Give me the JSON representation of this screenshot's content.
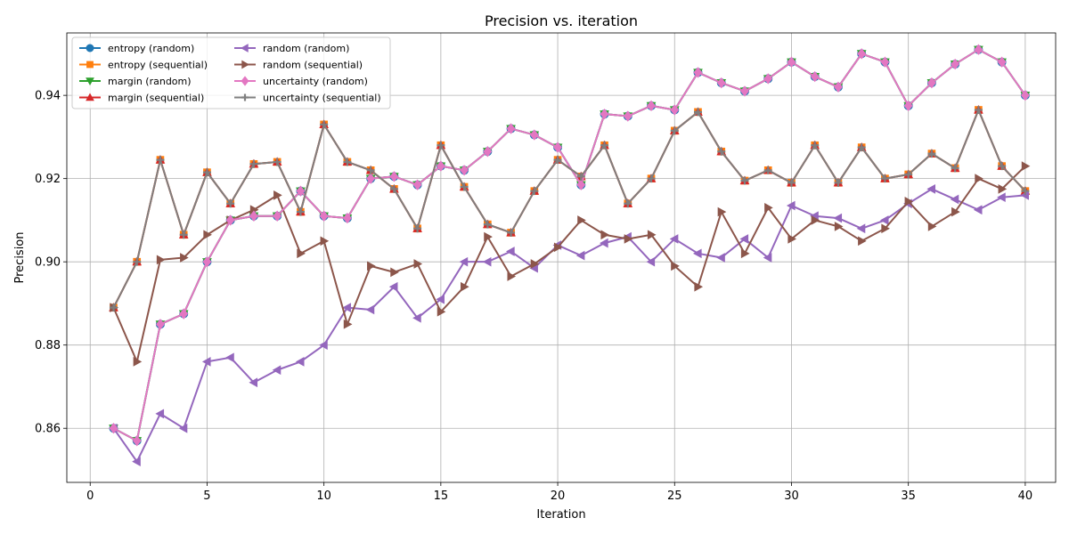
{
  "chart_data": {
    "type": "line",
    "title": "Precision vs. iteration",
    "xlabel": "Iteration",
    "ylabel": "Precision",
    "xlim": [
      -1,
      41.3
    ],
    "ylim": [
      0.847,
      0.955
    ],
    "xticks": [
      0,
      5,
      10,
      15,
      20,
      25,
      30,
      35,
      40
    ],
    "yticks": [
      0.86,
      0.88,
      0.9,
      0.92,
      0.94
    ],
    "grid": true,
    "legend_position": "upper-left",
    "x": [
      1,
      2,
      3,
      4,
      5,
      6,
      7,
      8,
      9,
      10,
      11,
      12,
      13,
      14,
      15,
      16,
      17,
      18,
      19,
      20,
      21,
      22,
      23,
      24,
      25,
      26,
      27,
      28,
      29,
      30,
      31,
      32,
      33,
      34,
      35,
      36,
      37,
      38,
      39,
      40
    ],
    "series": [
      {
        "name": "entropy (random)",
        "color": "#1f77b4",
        "marker": "circle",
        "values": [
          0.86,
          0.857,
          0.885,
          0.8875,
          0.9,
          0.91,
          0.911,
          0.911,
          0.917,
          0.911,
          0.9105,
          0.92,
          0.9205,
          0.9185,
          0.923,
          0.922,
          0.9265,
          0.932,
          0.9305,
          0.9275,
          0.9185,
          0.9355,
          0.935,
          0.9375,
          0.9365,
          0.9455,
          0.943,
          0.941,
          0.944,
          0.948,
          0.9445,
          0.942,
          0.95,
          0.948,
          0.9375,
          0.943,
          0.9475,
          0.951,
          0.948,
          0.94
        ]
      },
      {
        "name": "entropy (sequential)",
        "color": "#ff7f0e",
        "marker": "square",
        "values": [
          0.889,
          0.9,
          0.9245,
          0.9065,
          0.9215,
          0.914,
          0.9235,
          0.924,
          0.912,
          0.933,
          0.924,
          0.922,
          0.9175,
          0.908,
          0.928,
          0.918,
          0.909,
          0.907,
          0.917,
          0.9245,
          0.9205,
          0.928,
          0.914,
          0.92,
          0.9315,
          0.936,
          0.9265,
          0.9195,
          0.922,
          0.919,
          0.928,
          0.919,
          0.9275,
          0.92,
          0.921,
          0.926,
          0.9225,
          0.9365,
          0.923,
          0.917
        ]
      },
      {
        "name": "margin (random)",
        "color": "#2ca02c",
        "marker": "triangle-down",
        "values": [
          0.86,
          0.857,
          0.885,
          0.8875,
          0.9,
          0.91,
          0.911,
          0.911,
          0.917,
          0.911,
          0.9105,
          0.92,
          0.9205,
          0.9185,
          0.923,
          0.922,
          0.9265,
          0.932,
          0.9305,
          0.9275,
          0.9185,
          0.9355,
          0.935,
          0.9375,
          0.9365,
          0.9455,
          0.943,
          0.941,
          0.944,
          0.948,
          0.9445,
          0.942,
          0.95,
          0.948,
          0.9375,
          0.943,
          0.9475,
          0.951,
          0.948,
          0.94
        ]
      },
      {
        "name": "margin (sequential)",
        "color": "#d62728",
        "marker": "triangle-up",
        "values": [
          0.889,
          0.9,
          0.9245,
          0.9065,
          0.9215,
          0.914,
          0.9235,
          0.924,
          0.912,
          0.933,
          0.924,
          0.922,
          0.9175,
          0.908,
          0.928,
          0.918,
          0.909,
          0.907,
          0.917,
          0.9245,
          0.9205,
          0.928,
          0.914,
          0.92,
          0.9315,
          0.936,
          0.9265,
          0.9195,
          0.922,
          0.919,
          0.928,
          0.919,
          0.9275,
          0.92,
          0.921,
          0.926,
          0.9225,
          0.9365,
          0.923,
          0.917
        ]
      },
      {
        "name": "random (random)",
        "color": "#9467bd",
        "marker": "triangle-left",
        "values": [
          0.86,
          0.852,
          0.8635,
          0.86,
          0.876,
          0.877,
          0.871,
          0.874,
          0.876,
          0.88,
          0.889,
          0.8885,
          0.894,
          0.8865,
          0.891,
          0.9,
          0.9,
          0.9025,
          0.8985,
          0.904,
          0.9015,
          0.9045,
          0.906,
          0.9,
          0.9055,
          0.902,
          0.901,
          0.9055,
          0.901,
          0.9135,
          0.911,
          0.9105,
          0.908,
          0.91,
          0.914,
          0.9175,
          0.915,
          0.9125,
          0.9155,
          0.916
        ]
      },
      {
        "name": "random (sequential)",
        "color": "#8c564b",
        "marker": "triangle-right",
        "values": [
          0.889,
          0.876,
          0.9005,
          0.901,
          0.9065,
          0.91,
          0.9125,
          0.916,
          0.902,
          0.905,
          0.885,
          0.899,
          0.8975,
          0.8995,
          0.888,
          0.894,
          0.906,
          0.8965,
          0.8995,
          0.9035,
          0.91,
          0.9065,
          0.9055,
          0.9065,
          0.899,
          0.894,
          0.912,
          0.902,
          0.913,
          0.9055,
          0.91,
          0.9085,
          0.905,
          0.908,
          0.9145,
          0.9085,
          0.912,
          0.92,
          0.9175,
          0.923
        ]
      },
      {
        "name": "uncertainty (random)",
        "color": "#e377c2",
        "marker": "diamond",
        "values": [
          0.86,
          0.857,
          0.885,
          0.8875,
          0.9,
          0.91,
          0.911,
          0.911,
          0.917,
          0.911,
          0.9105,
          0.92,
          0.9205,
          0.9185,
          0.923,
          0.922,
          0.9265,
          0.932,
          0.9305,
          0.9275,
          0.9185,
          0.9355,
          0.935,
          0.9375,
          0.9365,
          0.9455,
          0.943,
          0.941,
          0.944,
          0.948,
          0.9445,
          0.942,
          0.95,
          0.948,
          0.9375,
          0.943,
          0.9475,
          0.951,
          0.948,
          0.94
        ]
      },
      {
        "name": "uncertainty (sequential)",
        "color": "#7f7f7f",
        "marker": "plus",
        "values": [
          0.889,
          0.9,
          0.9245,
          0.9065,
          0.9215,
          0.914,
          0.9235,
          0.924,
          0.912,
          0.933,
          0.924,
          0.922,
          0.9175,
          0.908,
          0.928,
          0.918,
          0.909,
          0.907,
          0.917,
          0.9245,
          0.9205,
          0.928,
          0.914,
          0.92,
          0.9315,
          0.936,
          0.9265,
          0.9195,
          0.922,
          0.919,
          0.928,
          0.919,
          0.9275,
          0.92,
          0.921,
          0.926,
          0.9225,
          0.9365,
          0.923,
          0.917
        ]
      }
    ]
  }
}
